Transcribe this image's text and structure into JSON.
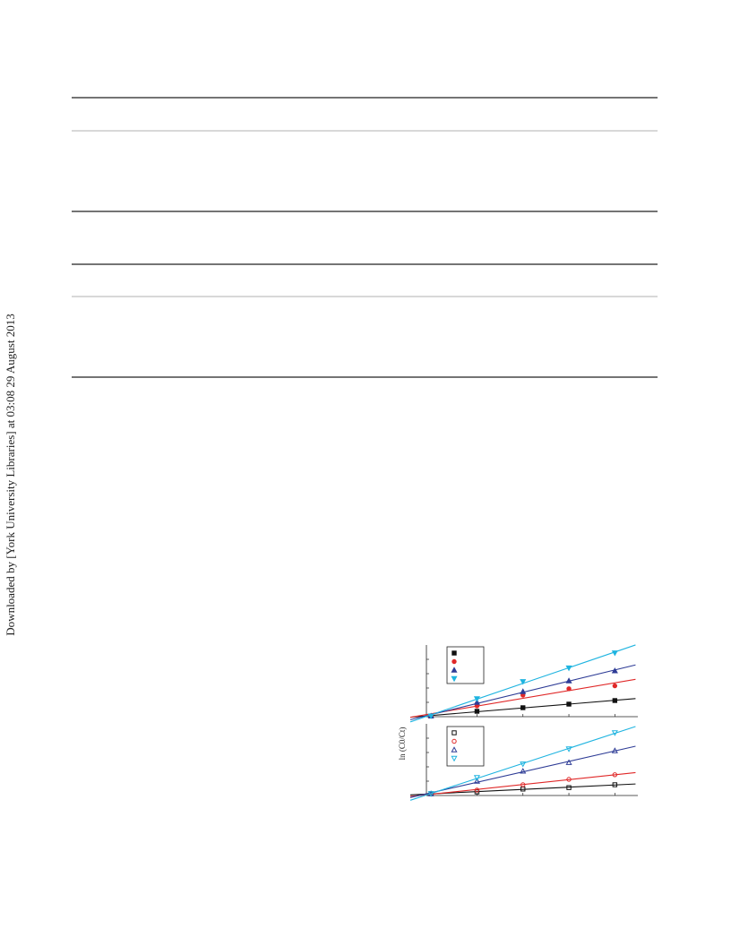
{
  "side_note": "Downloaded by [York University Libraries] at 03:08 29 August 2013",
  "chart_data": [
    {
      "type": "scatter",
      "ylabel": "ln (C0/Ct)",
      "filled": true,
      "x": [
        0,
        1,
        2,
        3,
        4
      ],
      "xlim": [
        -0.1,
        4.5
      ],
      "ylim": [
        0,
        1
      ],
      "xticks": [
        0,
        1,
        2,
        3,
        4
      ],
      "yticks": [
        0,
        0.2,
        0.4,
        0.6,
        0.8
      ],
      "series": [
        {
          "color": "#111111",
          "marker": "square",
          "values": [
            0.01,
            0.075,
            0.125,
            0.175,
            0.225
          ]
        },
        {
          "color": "#e02828",
          "marker": "circle",
          "values": [
            0.01,
            0.15,
            0.3,
            0.39,
            0.43
          ]
        },
        {
          "color": "#2e3c96",
          "marker": "triangle",
          "values": [
            0.01,
            0.2,
            0.35,
            0.5,
            0.64
          ]
        },
        {
          "color": "#1fb4e0",
          "marker": "triangle-down",
          "values": [
            0.01,
            0.25,
            0.49,
            0.68,
            0.89
          ]
        }
      ]
    },
    {
      "type": "scatter",
      "filled": false,
      "x": [
        0,
        1,
        2,
        3,
        4
      ],
      "xlim": [
        -0.1,
        4.5
      ],
      "ylim": [
        0,
        1
      ],
      "xticks": [
        0,
        1,
        2,
        3,
        4
      ],
      "yticks": [
        0,
        0.2,
        0.4,
        0.6,
        0.8
      ],
      "series": [
        {
          "color": "#111111",
          "marker": "square",
          "values": [
            0.025,
            0.05,
            0.09,
            0.11,
            0.15
          ]
        },
        {
          "color": "#e02828",
          "marker": "circle",
          "values": [
            0.025,
            0.075,
            0.15,
            0.225,
            0.29
          ]
        },
        {
          "color": "#2e3c96",
          "marker": "triangle",
          "values": [
            0.025,
            0.2,
            0.34,
            0.46,
            0.625
          ]
        },
        {
          "color": "#1fb4e0",
          "marker": "triangle-down",
          "values": [
            0.025,
            0.25,
            0.44,
            0.65,
            0.875
          ]
        }
      ]
    }
  ]
}
